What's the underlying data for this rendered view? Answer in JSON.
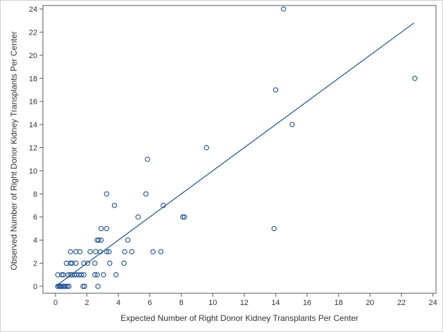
{
  "chart_data": {
    "type": "scatter",
    "title": "",
    "xlabel": "Expected Number of Right Donor Kidney Transplants Per Center",
    "ylabel": "Observed Number of Right Donor Kidney Transplants Per Center",
    "xlim": [
      -0.8,
      24.2
    ],
    "ylim": [
      -0.6,
      24.3
    ],
    "x_ticks": [
      0,
      2,
      4,
      6,
      8,
      10,
      12,
      14,
      16,
      18,
      20,
      22,
      24
    ],
    "y_ticks": [
      0,
      2,
      4,
      6,
      8,
      10,
      12,
      14,
      16,
      18,
      20,
      22,
      24
    ],
    "grid": false,
    "legend": "none",
    "colors": {
      "marker": "#1f4e8c",
      "line": "#1f4e8c",
      "axis": "#555555",
      "frame": "#d0d0d0"
    },
    "points": [
      [
        0.15,
        0
      ],
      [
        0.25,
        0
      ],
      [
        0.3,
        0
      ],
      [
        0.35,
        0
      ],
      [
        0.45,
        0
      ],
      [
        0.55,
        0
      ],
      [
        0.65,
        0
      ],
      [
        0.75,
        0
      ],
      [
        0.85,
        0
      ],
      [
        0.15,
        1
      ],
      [
        0.4,
        1
      ],
      [
        0.5,
        1
      ],
      [
        0.8,
        1
      ],
      [
        0.95,
        1
      ],
      [
        1.05,
        1
      ],
      [
        1.2,
        1
      ],
      [
        1.35,
        1
      ],
      [
        1.5,
        1
      ],
      [
        1.65,
        1
      ],
      [
        1.8,
        1
      ],
      [
        0.7,
        2
      ],
      [
        0.95,
        2
      ],
      [
        1.05,
        2
      ],
      [
        1.3,
        2
      ],
      [
        1.8,
        2
      ],
      [
        2.05,
        2
      ],
      [
        0.95,
        3
      ],
      [
        1.3,
        3
      ],
      [
        1.55,
        3
      ],
      [
        2.2,
        3
      ],
      [
        1.75,
        0
      ],
      [
        1.85,
        0
      ],
      [
        2.7,
        0
      ],
      [
        2.5,
        1
      ],
      [
        2.65,
        1
      ],
      [
        3.05,
        1
      ],
      [
        3.85,
        1
      ],
      [
        2.5,
        2
      ],
      [
        3.45,
        2
      ],
      [
        4.35,
        2
      ],
      [
        2.55,
        3
      ],
      [
        2.85,
        3
      ],
      [
        3.25,
        3
      ],
      [
        3.4,
        3
      ],
      [
        4.4,
        3
      ],
      [
        4.85,
        3
      ],
      [
        6.2,
        3
      ],
      [
        6.7,
        3
      ],
      [
        2.65,
        4
      ],
      [
        2.75,
        4
      ],
      [
        2.9,
        4
      ],
      [
        4.6,
        4
      ],
      [
        2.9,
        5
      ],
      [
        3.25,
        5
      ],
      [
        13.9,
        5
      ],
      [
        5.25,
        6
      ],
      [
        8.1,
        6
      ],
      [
        8.2,
        6
      ],
      [
        3.75,
        7
      ],
      [
        6.85,
        7
      ],
      [
        3.25,
        8
      ],
      [
        5.75,
        8
      ],
      [
        5.85,
        11
      ],
      [
        9.6,
        12
      ],
      [
        14.0,
        17
      ],
      [
        15.05,
        14
      ],
      [
        14.5,
        24
      ],
      [
        22.85,
        18
      ]
    ],
    "reference_line": {
      "x": [
        0,
        22.8
      ],
      "y": [
        0,
        22.8
      ]
    }
  }
}
